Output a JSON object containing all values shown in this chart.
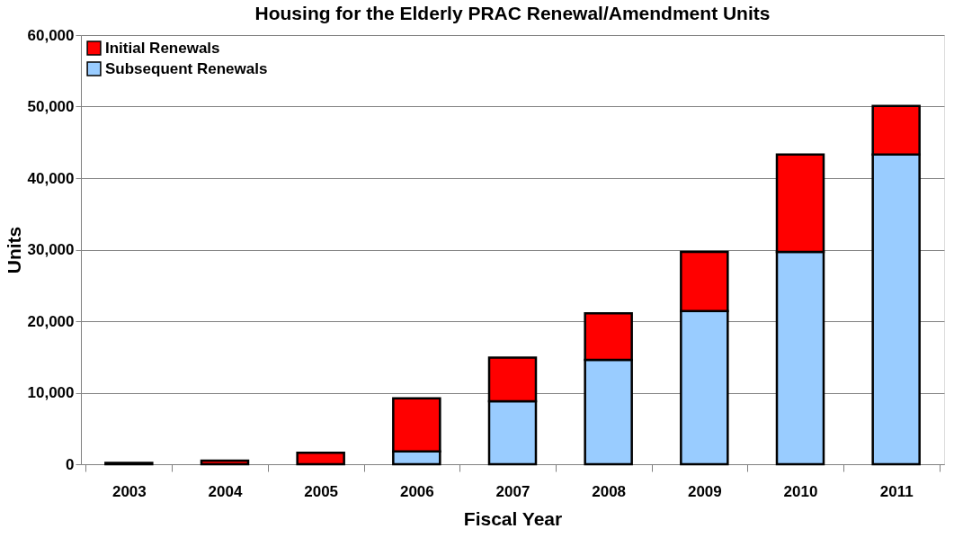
{
  "chart_data": {
    "type": "bar",
    "title": "Housing for the Elderly PRAC Renewal/Amendment Units",
    "xlabel": "Fiscal Year",
    "ylabel": "Units",
    "categories": [
      "2003",
      "2004",
      "2005",
      "2006",
      "2007",
      "2008",
      "2009",
      "2010",
      "2011"
    ],
    "stacked": true,
    "series": [
      {
        "name": "Subsequent Renewals",
        "color": "#99ccff",
        "values": [
          null,
          null,
          null,
          1800,
          8800,
          14600,
          21400,
          29700,
          43300
        ]
      },
      {
        "name": "Initial Renewals",
        "color": "#ff0000",
        "values": [
          200,
          500,
          1600,
          7400,
          6100,
          6500,
          8300,
          13600,
          6800
        ]
      }
    ],
    "ylim": [
      0,
      60000
    ],
    "yticks": [
      {
        "value": 0,
        "label": "0"
      },
      {
        "value": 10000,
        "label": "10,000"
      },
      {
        "value": 20000,
        "label": "20,000"
      },
      {
        "value": 30000,
        "label": "30,000"
      },
      {
        "value": 40000,
        "label": "40,000"
      },
      {
        "value": 50000,
        "label": "50,000"
      },
      {
        "value": 60000,
        "label": "60,000"
      }
    ],
    "grid": "y",
    "legend": "top left"
  }
}
